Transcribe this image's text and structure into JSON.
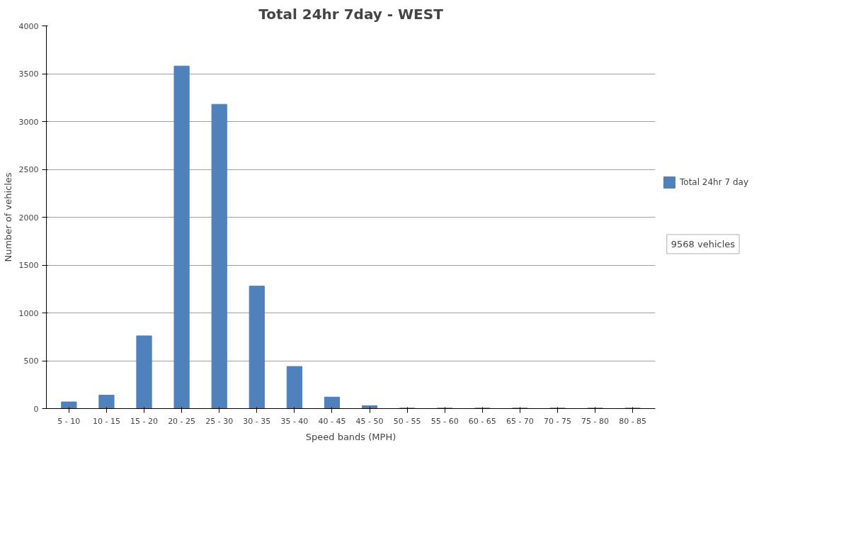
{
  "chart_data": {
    "type": "bar",
    "title": "Total 24hr 7day - WEST",
    "xlabel": "Speed bands (MPH)",
    "ylabel": "Number of vehicles",
    "categories": [
      "5 - 10",
      "10 - 15",
      "15 - 20",
      "20 - 25",
      "25 - 30",
      "30 - 35",
      "35 - 40",
      "40 - 45",
      "45 - 50",
      "50 - 55",
      "55 - 60",
      "60 - 65",
      "65 - 70",
      "70 - 75",
      "75 - 80",
      "80 - 85"
    ],
    "series": [
      {
        "name": "Total 24hr 7 day",
        "color": "#4f81bd",
        "values": [
          70,
          140,
          760,
          3580,
          3180,
          1280,
          440,
          120,
          30,
          5,
          5,
          5,
          5,
          5,
          5,
          5
        ]
      }
    ],
    "ylim": [
      0,
      4000
    ],
    "yticks": [
      0,
      500,
      1000,
      1500,
      2000,
      2500,
      3000,
      3500,
      4000
    ],
    "grid": "y",
    "legend": "right",
    "annotations": [
      "9568 vehicles"
    ]
  }
}
